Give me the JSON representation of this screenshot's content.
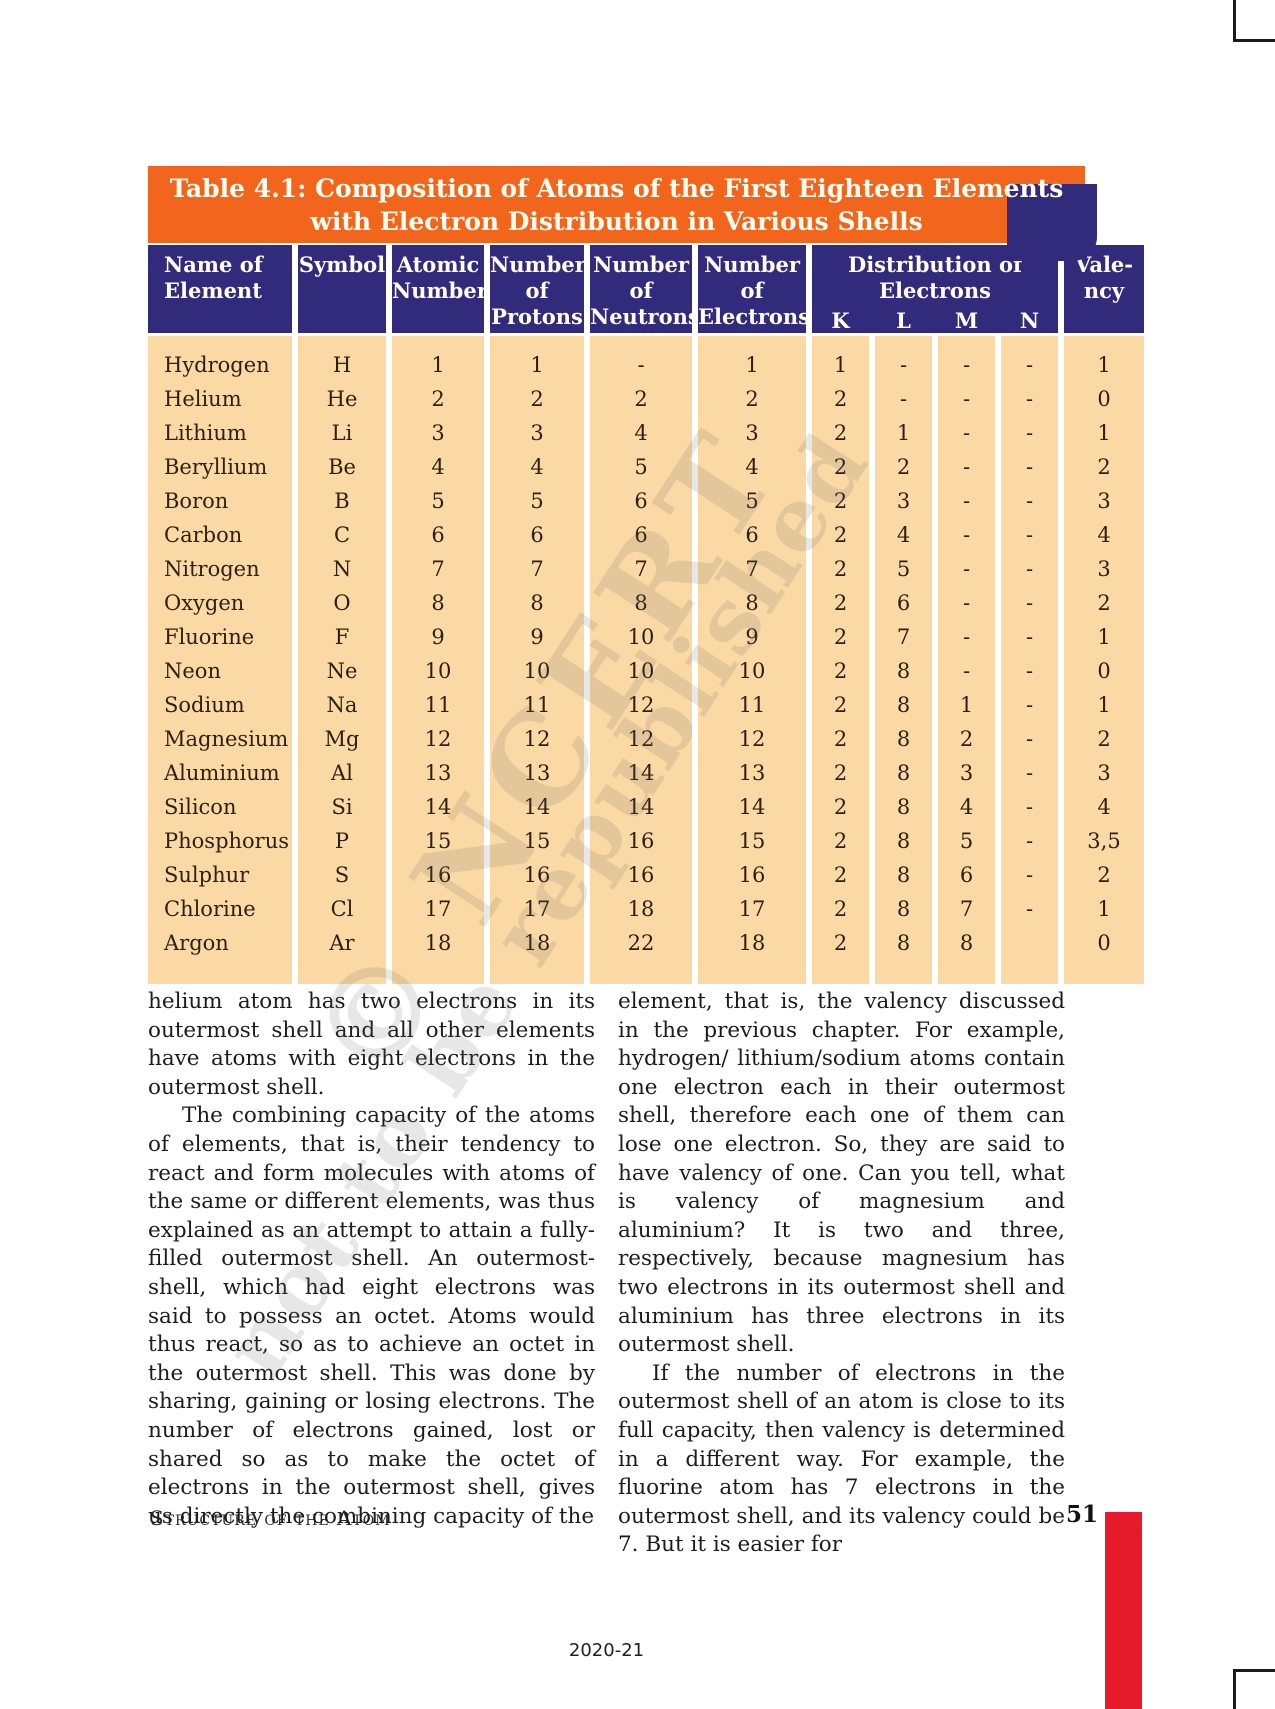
{
  "colors": {
    "banner_orange": "#F2651D",
    "header_navy": "#322B7C",
    "body_peach": "#FBD9A4",
    "accent_red": "#E71A2C"
  },
  "watermark": {
    "line1": "© NCERT",
    "line2": "not to be republished"
  },
  "table": {
    "title_line1": "Table 4.1: Composition of Atoms of the First Eighteen Elements",
    "title_line2": "with Electron Distribution in Various Shells",
    "headers": {
      "name": [
        "Name of",
        "Element"
      ],
      "symbol": "Symbol",
      "atomic": [
        "Atomic",
        "Number"
      ],
      "protons": [
        "Number",
        "of",
        "Protons"
      ],
      "neutrons": [
        "Number",
        "of",
        "Neutrons"
      ],
      "electrons": [
        "Number",
        "of",
        "Electrons"
      ],
      "distribution": [
        "Distribution of",
        "Electrons"
      ],
      "shells": [
        "K",
        "L",
        "M",
        "N"
      ],
      "valency": [
        "Vale-",
        "ncy"
      ]
    },
    "column_keys": [
      "name",
      "symbol",
      "atomic",
      "protons",
      "neutrons",
      "electrons",
      "K",
      "L",
      "M",
      "N",
      "valency"
    ],
    "rows": [
      {
        "name": "Hydrogen",
        "symbol": "H",
        "atomic": "1",
        "protons": "1",
        "neutrons": "-",
        "electrons": "1",
        "K": "1",
        "L": "-",
        "M": "-",
        "N": "-",
        "valency": "1"
      },
      {
        "name": "Helium",
        "symbol": "He",
        "atomic": "2",
        "protons": "2",
        "neutrons": "2",
        "electrons": "2",
        "K": "2",
        "L": "-",
        "M": "-",
        "N": "-",
        "valency": "0"
      },
      {
        "name": "Lithium",
        "symbol": "Li",
        "atomic": "3",
        "protons": "3",
        "neutrons": "4",
        "electrons": "3",
        "K": "2",
        "L": "1",
        "M": "-",
        "N": "-",
        "valency": "1"
      },
      {
        "name": "Beryllium",
        "symbol": "Be",
        "atomic": "4",
        "protons": "4",
        "neutrons": "5",
        "electrons": "4",
        "K": "2",
        "L": "2",
        "M": "-",
        "N": "-",
        "valency": "2"
      },
      {
        "name": "Boron",
        "symbol": "B",
        "atomic": "5",
        "protons": "5",
        "neutrons": "6",
        "electrons": "5",
        "K": "2",
        "L": "3",
        "M": "-",
        "N": "-",
        "valency": "3"
      },
      {
        "name": "Carbon",
        "symbol": "C",
        "atomic": "6",
        "protons": "6",
        "neutrons": "6",
        "electrons": "6",
        "K": "2",
        "L": "4",
        "M": "-",
        "N": "-",
        "valency": "4"
      },
      {
        "name": "Nitrogen",
        "symbol": "N",
        "atomic": "7",
        "protons": "7",
        "neutrons": "7",
        "electrons": "7",
        "K": "2",
        "L": "5",
        "M": "-",
        "N": "-",
        "valency": "3"
      },
      {
        "name": "Oxygen",
        "symbol": "O",
        "atomic": "8",
        "protons": "8",
        "neutrons": "8",
        "electrons": "8",
        "K": "2",
        "L": "6",
        "M": "-",
        "N": "-",
        "valency": "2"
      },
      {
        "name": "Fluorine",
        "symbol": "F",
        "atomic": "9",
        "protons": "9",
        "neutrons": "10",
        "electrons": "9",
        "K": "2",
        "L": "7",
        "M": "-",
        "N": "-",
        "valency": "1"
      },
      {
        "name": "Neon",
        "symbol": "Ne",
        "atomic": "10",
        "protons": "10",
        "neutrons": "10",
        "electrons": "10",
        "K": "2",
        "L": "8",
        "M": "-",
        "N": "-",
        "valency": "0"
      },
      {
        "name": "Sodium",
        "symbol": "Na",
        "atomic": "11",
        "protons": "11",
        "neutrons": "12",
        "electrons": "11",
        "K": "2",
        "L": "8",
        "M": "1",
        "N": "-",
        "valency": "1"
      },
      {
        "name": "Magnesium",
        "symbol": "Mg",
        "atomic": "12",
        "protons": "12",
        "neutrons": "12",
        "electrons": "12",
        "K": "2",
        "L": "8",
        "M": "2",
        "N": "-",
        "valency": "2"
      },
      {
        "name": "Aluminium",
        "symbol": "Al",
        "atomic": "13",
        "protons": "13",
        "neutrons": "14",
        "electrons": "13",
        "K": "2",
        "L": "8",
        "M": "3",
        "N": "-",
        "valency": "3"
      },
      {
        "name": "Silicon",
        "symbol": "Si",
        "atomic": "14",
        "protons": "14",
        "neutrons": "14",
        "electrons": "14",
        "K": "2",
        "L": "8",
        "M": "4",
        "N": "-",
        "valency": "4"
      },
      {
        "name": "Phosphorus",
        "symbol": "P",
        "atomic": "15",
        "protons": "15",
        "neutrons": "16",
        "electrons": "15",
        "K": "2",
        "L": "8",
        "M": "5",
        "N": "-",
        "valency": "3,5"
      },
      {
        "name": "Sulphur",
        "symbol": "S",
        "atomic": "16",
        "protons": "16",
        "neutrons": "16",
        "electrons": "16",
        "K": "2",
        "L": "8",
        "M": "6",
        "N": "-",
        "valency": "2"
      },
      {
        "name": "Chlorine",
        "symbol": "Cl",
        "atomic": "17",
        "protons": "17",
        "neutrons": "18",
        "electrons": "17",
        "K": "2",
        "L": "8",
        "M": "7",
        "N": "-",
        "valency": "1"
      },
      {
        "name": "Argon",
        "symbol": "Ar",
        "atomic": "18",
        "protons": "18",
        "neutrons": "22",
        "electrons": "18",
        "K": "2",
        "L": "8",
        "M": "8",
        "N": "",
        "valency": "0"
      }
    ]
  },
  "content": {
    "left": [
      "helium atom has two electrons in its outermost shell and all other elements have atoms with eight electrons in the outermost shell.",
      "The combining capacity of the atoms of elements, that is, their tendency to react and form molecules with atoms of the same or different elements, was thus explained as an attempt to attain a fully-filled outermost shell. An outermost-shell, which had eight electrons was said to possess an octet. Atoms would thus react, so as to achieve an octet in the outermost shell. This was done by sharing, gaining or losing electrons. The number of electrons gained, lost or shared so as to make the octet of electrons in the outermost shell, gives us directly the combining capacity of the"
    ],
    "right": [
      "element, that is, the valency discussed in the previous chapter. For example, hydrogen/ lithium/sodium atoms contain one electron each in their outermost shell, therefore each one of them can lose one electron. So, they are said to have valency of one. Can you tell, what is valency of magnesium and aluminium? It is two and three, respectively, because magnesium has two electrons in its outermost shell and aluminium has three electrons in its outermost shell.",
      "If the number of electrons in the outermost shell of an atom is close to its full capacity, then valency is determined in a different way. For example, the fluorine atom has 7 electrons in the outermost shell, and its valency could be 7. But it is easier for"
    ]
  },
  "footer": {
    "chapter_label": "Structure of the Atom",
    "page_number": "51",
    "year_label": "2020-21"
  }
}
